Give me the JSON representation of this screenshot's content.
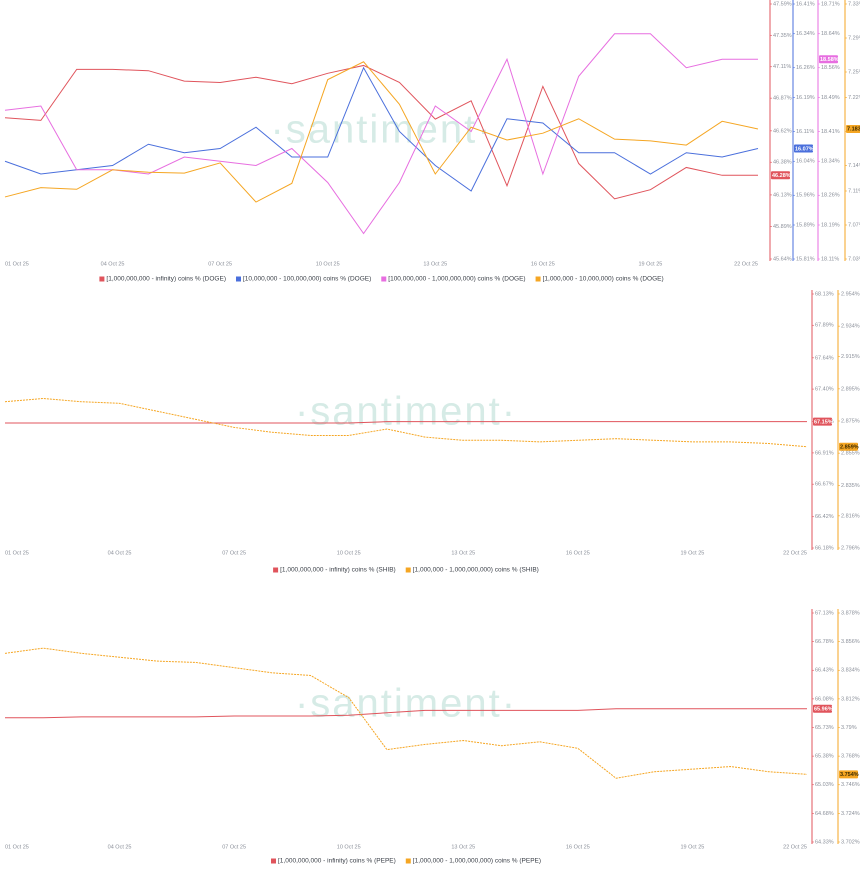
{
  "chart_data": [
    {
      "type": "line",
      "watermark": "·santiment·",
      "categories": [
        "01 Oct 25",
        null,
        null,
        "04 Oct 25",
        null,
        null,
        "07 Oct 25",
        null,
        null,
        "10 Oct 25",
        null,
        null,
        "13 Oct 25",
        null,
        null,
        "16 Oct 25",
        null,
        null,
        "19 Oct 25",
        null,
        null,
        "22 Oct 25"
      ],
      "series": [
        {
          "name": "[1,000,000,000 - infinity) coins % (DOGE)",
          "color": "#e0545c",
          "values": [
            46.72,
            46.7,
            47.09,
            47.09,
            47.08,
            47.0,
            46.99,
            47.03,
            46.98,
            47.06,
            47.12,
            46.99,
            46.71,
            46.85,
            46.2,
            46.96,
            46.37,
            46.1,
            46.17,
            46.34,
            46.28,
            46.28
          ],
          "value_labels": [
            null,
            null,
            null,
            null,
            null,
            null,
            null,
            null,
            null,
            null,
            null,
            null,
            null,
            null,
            null,
            null,
            null,
            null,
            null,
            null,
            null,
            "46.28%"
          ],
          "ylim": [
            45.64,
            47.59
          ],
          "yticks": [
            {
              "value": 47.59,
              "label": "47.59%"
            },
            {
              "value": 47.35,
              "label": "47.35%"
            },
            {
              "value": 47.11,
              "label": "47.11%"
            },
            {
              "value": 46.87,
              "label": "46.87%"
            },
            {
              "value": 46.62,
              "label": "46.62%"
            },
            {
              "value": 46.38,
              "label": "46.38%"
            },
            {
              "value": 46.13,
              "label": "46.13%"
            },
            {
              "value": 45.89,
              "label": "45.89%"
            },
            {
              "value": 45.64,
              "label": "45.64%"
            }
          ]
        },
        {
          "name": "[10,000,000 - 100,000,000) coins % (DOGE)",
          "color": "#4a6fdc",
          "values": [
            16.04,
            16.01,
            16.02,
            16.03,
            16.08,
            16.06,
            16.07,
            16.12,
            16.05,
            16.05,
            16.26,
            16.11,
            16.03,
            15.97,
            16.14,
            16.13,
            16.06,
            16.06,
            16.01,
            16.06,
            16.05,
            16.07
          ],
          "value_labels": [
            null,
            null,
            null,
            null,
            null,
            null,
            null,
            null,
            null,
            null,
            null,
            null,
            null,
            null,
            null,
            null,
            null,
            null,
            null,
            null,
            null,
            "16.07%"
          ],
          "ylim": [
            15.81,
            16.41
          ],
          "yticks": [
            {
              "value": 16.41,
              "label": "16.41%"
            },
            {
              "value": 16.34,
              "label": "16.34%"
            },
            {
              "value": 16.26,
              "label": "16.26%"
            },
            {
              "value": 16.19,
              "label": "16.19%"
            },
            {
              "value": 16.11,
              "label": "16.11%"
            },
            {
              "value": 16.04,
              "label": "16.04%"
            },
            {
              "value": 15.96,
              "label": "15.96%"
            },
            {
              "value": 15.89,
              "label": "15.89%"
            },
            {
              "value": 15.81,
              "label": "15.81%"
            }
          ]
        },
        {
          "name": "[100,000,000 - 1,000,000,000) coins % (DOGE)",
          "color": "#e76ee0",
          "values": [
            18.46,
            18.47,
            18.32,
            18.32,
            18.31,
            18.35,
            18.34,
            18.33,
            18.37,
            18.29,
            18.17,
            18.29,
            18.47,
            18.41,
            18.58,
            18.31,
            18.54,
            18.64,
            18.64,
            18.56,
            18.58,
            18.58
          ],
          "value_labels": [
            null,
            null,
            null,
            null,
            null,
            null,
            null,
            null,
            null,
            null,
            null,
            null,
            null,
            null,
            null,
            null,
            null,
            null,
            null,
            null,
            null,
            "18.58%"
          ],
          "ylim": [
            18.11,
            18.71
          ],
          "yticks": [
            {
              "value": 18.71,
              "label": "18.71%"
            },
            {
              "value": 18.64,
              "label": "18.64%"
            },
            {
              "value": 18.56,
              "label": "18.56%"
            },
            {
              "value": 18.49,
              "label": "18.49%"
            },
            {
              "value": 18.41,
              "label": "18.41%"
            },
            {
              "value": 18.34,
              "label": "18.34%"
            },
            {
              "value": 18.26,
              "label": "18.26%"
            },
            {
              "value": 18.19,
              "label": "18.19%"
            },
            {
              "value": 18.11,
              "label": "18.11%"
            }
          ]
        },
        {
          "name": "[1,000,000 - 10,000,000) coins % (DOGE)",
          "color": "#f5a623",
          "values": [
            7.103,
            7.114,
            7.112,
            7.135,
            7.132,
            7.131,
            7.143,
            7.097,
            7.119,
            7.241,
            7.262,
            7.212,
            7.13,
            7.185,
            7.17,
            7.178,
            7.195,
            7.171,
            7.169,
            7.164,
            7.192,
            7.183
          ],
          "value_labels": [
            null,
            null,
            null,
            null,
            null,
            null,
            null,
            null,
            null,
            null,
            null,
            null,
            null,
            null,
            null,
            null,
            null,
            null,
            null,
            null,
            null,
            "7.183%"
          ],
          "ylim": [
            7.03,
            7.33
          ],
          "yticks": [
            {
              "value": 7.33,
              "label": "7.33%"
            },
            {
              "value": 7.29,
              "label": "7.29%"
            },
            {
              "value": 7.25,
              "label": "7.25%"
            },
            {
              "value": 7.22,
              "label": "7.22%"
            },
            {
              "value": 7.18,
              "label": "7.18%"
            },
            {
              "value": 7.14,
              "label": "7.14%"
            },
            {
              "value": 7.11,
              "label": "7.11%"
            },
            {
              "value": 7.07,
              "label": "7.07%"
            },
            {
              "value": 7.03,
              "label": "7.03%"
            }
          ]
        }
      ]
    },
    {
      "type": "line",
      "watermark": "·santiment·",
      "categories": [
        "01 Oct 25",
        null,
        null,
        "04 Oct 25",
        null,
        null,
        "07 Oct 25",
        null,
        null,
        "10 Oct 25",
        null,
        null,
        "13 Oct 25",
        null,
        null,
        "16 Oct 25",
        null,
        null,
        "19 Oct 25",
        null,
        null,
        "22 Oct 25"
      ],
      "series": [
        {
          "name": "[1,000,000,000 - infinity) coins % (SHIB)",
          "color": "#e0545c",
          "values": [
            67.14,
            67.14,
            67.14,
            67.14,
            67.14,
            67.14,
            67.14,
            67.14,
            67.14,
            67.14,
            67.15,
            67.15,
            67.15,
            67.15,
            67.15,
            67.15,
            67.15,
            67.15,
            67.15,
            67.15,
            67.15,
            67.15
          ],
          "value_labels": [
            null,
            null,
            null,
            null,
            null,
            null,
            null,
            null,
            null,
            null,
            null,
            null,
            null,
            null,
            null,
            null,
            null,
            null,
            null,
            null,
            null,
            "67.15%"
          ],
          "ylim": [
            66.18,
            68.13
          ],
          "yticks": [
            {
              "value": 68.13,
              "label": "68.13%"
            },
            {
              "value": 67.89,
              "label": "67.89%"
            },
            {
              "value": 67.64,
              "label": "67.64%"
            },
            {
              "value": 67.4,
              "label": "67.40%"
            },
            {
              "value": 67.15,
              "label": "67.15%"
            },
            {
              "value": 66.91,
              "label": "66.91%"
            },
            {
              "value": 66.67,
              "label": "66.67%"
            },
            {
              "value": 66.42,
              "label": "66.42%"
            },
            {
              "value": 66.18,
              "label": "66.18%"
            }
          ]
        },
        {
          "name": "[1,000,000 - 1,000,000,000) coins % (SHIB)",
          "color": "#f5a623",
          "values": [
            2.887,
            2.889,
            2.887,
            2.886,
            2.881,
            2.876,
            2.871,
            2.868,
            2.866,
            2.866,
            2.87,
            2.865,
            2.863,
            2.863,
            2.862,
            2.863,
            2.864,
            2.863,
            2.862,
            2.862,
            2.861,
            2.859
          ],
          "value_labels": [
            null,
            null,
            null,
            null,
            null,
            null,
            null,
            null,
            null,
            null,
            null,
            null,
            null,
            null,
            null,
            null,
            null,
            null,
            null,
            null,
            null,
            "2.859%"
          ],
          "ylim": [
            2.796,
            2.954
          ],
          "yticks": [
            {
              "value": 2.954,
              "label": "2.954%"
            },
            {
              "value": 2.934,
              "label": "2.934%"
            },
            {
              "value": 2.915,
              "label": "2.915%"
            },
            {
              "value": 2.895,
              "label": "2.895%"
            },
            {
              "value": 2.875,
              "label": "2.875%"
            },
            {
              "value": 2.855,
              "label": "2.855%"
            },
            {
              "value": 2.835,
              "label": "2.835%"
            },
            {
              "value": 2.816,
              "label": "2.816%"
            },
            {
              "value": 2.796,
              "label": "2.796%"
            }
          ]
        }
      ]
    },
    {
      "type": "line",
      "watermark": "·santiment·",
      "categories": [
        "01 Oct 25",
        null,
        null,
        "04 Oct 25",
        null,
        null,
        "07 Oct 25",
        null,
        null,
        "10 Oct 25",
        null,
        null,
        "13 Oct 25",
        null,
        null,
        "16 Oct 25",
        null,
        null,
        "19 Oct 25",
        null,
        null,
        "22 Oct 25"
      ],
      "series": [
        {
          "name": "[1,000,000,000 - infinity) coins % (PEPE)",
          "color": "#e0545c",
          "values": [
            65.85,
            65.85,
            65.86,
            65.86,
            65.86,
            65.86,
            65.87,
            65.87,
            65.87,
            65.88,
            65.91,
            65.94,
            65.94,
            65.94,
            65.94,
            65.94,
            65.96,
            65.96,
            65.96,
            65.96,
            65.96,
            65.96
          ],
          "value_labels": [
            null,
            null,
            null,
            null,
            null,
            null,
            null,
            null,
            null,
            null,
            null,
            null,
            null,
            null,
            null,
            null,
            null,
            null,
            null,
            null,
            null,
            "65.96%"
          ],
          "ylim": [
            64.33,
            67.13
          ],
          "yticks": [
            {
              "value": 67.13,
              "label": "67.13%"
            },
            {
              "value": 66.78,
              "label": "66.78%"
            },
            {
              "value": 66.43,
              "label": "66.43%"
            },
            {
              "value": 66.08,
              "label": "66.08%"
            },
            {
              "value": 65.73,
              "label": "65.73%"
            },
            {
              "value": 65.38,
              "label": "65.38%"
            },
            {
              "value": 65.03,
              "label": "65.03%"
            },
            {
              "value": 64.68,
              "label": "64.68%"
            },
            {
              "value": 64.33,
              "label": "64.33%"
            }
          ]
        },
        {
          "name": "[1,000,000 - 1,000,000,000) coins % (PEPE)",
          "color": "#f5a623",
          "values": [
            3.847,
            3.851,
            3.847,
            3.844,
            3.841,
            3.84,
            3.836,
            3.832,
            3.83,
            3.813,
            3.773,
            3.777,
            3.78,
            3.776,
            3.779,
            3.774,
            3.751,
            3.756,
            3.758,
            3.76,
            3.756,
            3.754
          ],
          "value_labels": [
            null,
            null,
            null,
            null,
            null,
            null,
            null,
            null,
            null,
            null,
            null,
            null,
            null,
            null,
            null,
            null,
            null,
            null,
            null,
            null,
            null,
            "3.754%"
          ],
          "ylim": [
            3.702,
            3.878
          ],
          "yticks": [
            {
              "value": 3.878,
              "label": "3.878%"
            },
            {
              "value": 3.856,
              "label": "3.856%"
            },
            {
              "value": 3.834,
              "label": "3.834%"
            },
            {
              "value": 3.812,
              "label": "3.812%"
            },
            {
              "value": 3.79,
              "label": "3.79%"
            },
            {
              "value": 3.768,
              "label": "3.768%"
            },
            {
              "value": 3.746,
              "label": "3.746%"
            },
            {
              "value": 3.724,
              "label": "3.724%"
            },
            {
              "value": 3.702,
              "label": "3.702%"
            }
          ]
        }
      ]
    }
  ]
}
